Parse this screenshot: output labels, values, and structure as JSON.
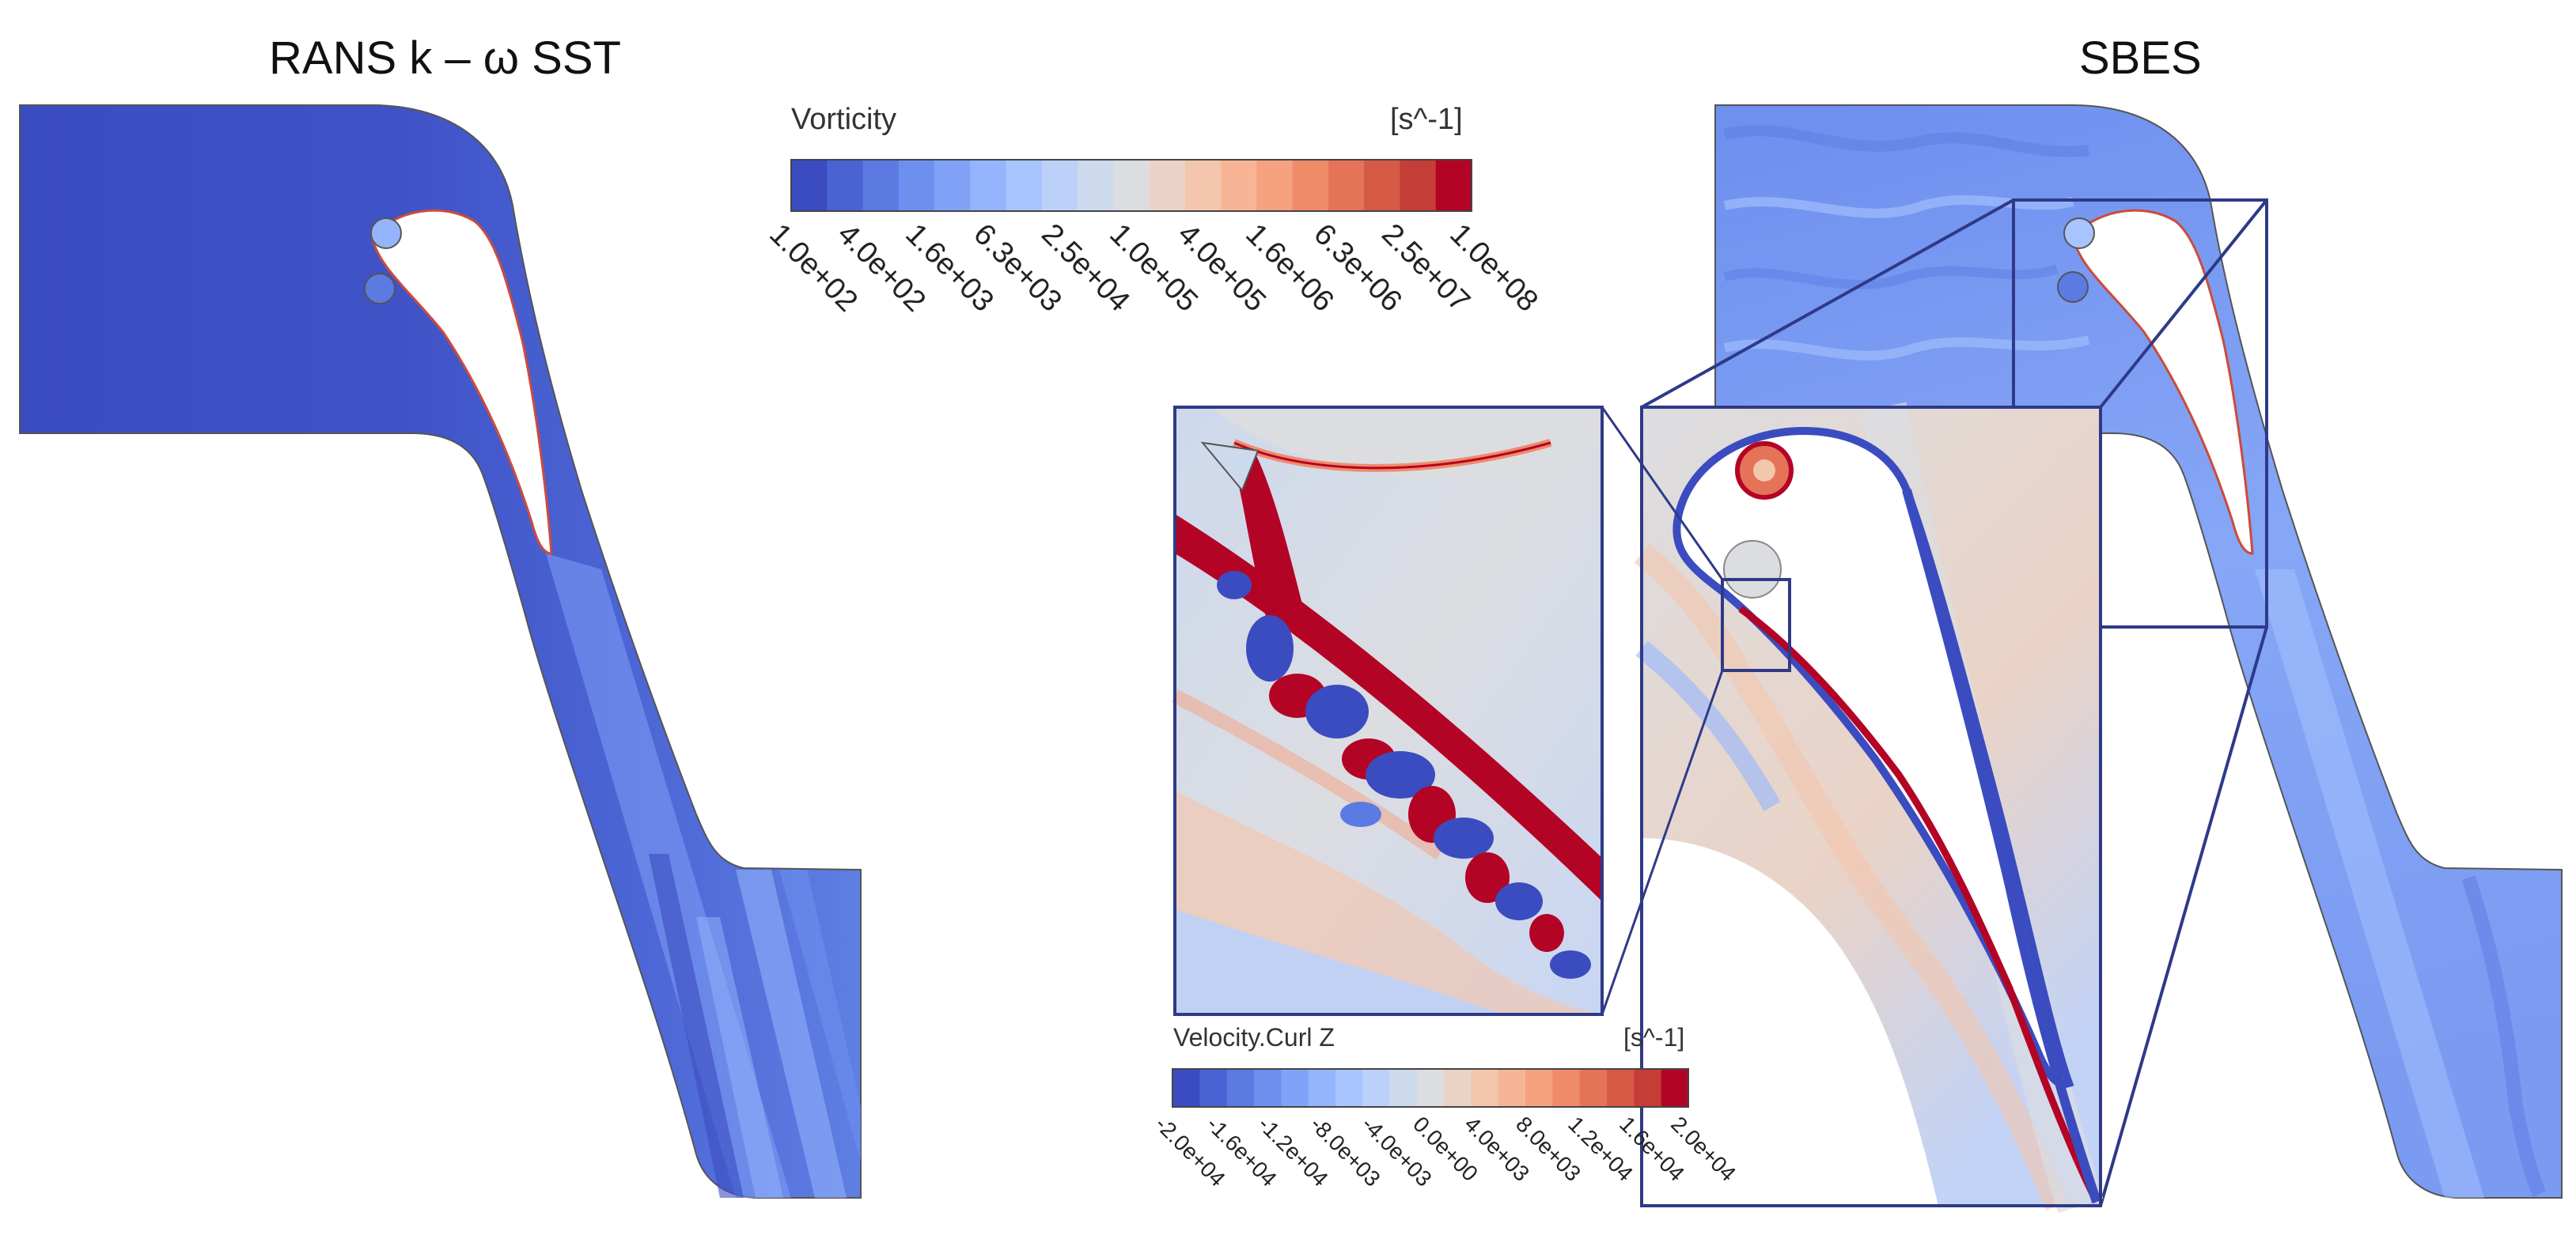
{
  "panels": {
    "left_title": "RANS k – ω SST",
    "right_title": "SBES"
  },
  "colorbar_vorticity": {
    "title": "Vorticity",
    "unit": "[s^-1]",
    "ticks": [
      "1.0e+02",
      "4.0e+02",
      "1.6e+03",
      "6.3e+03",
      "2.5e+04",
      "1.0e+05",
      "4.0e+05",
      "1.6e+06",
      "6.3e+06",
      "2.5e+07",
      "1.0e+08"
    ],
    "colors": [
      "#3b4cc0",
      "#4a63d3",
      "#5b7ae2",
      "#6d8fee",
      "#80a3f7",
      "#94b5fd",
      "#a8c4fe",
      "#bcd1f9",
      "#cdd9ed",
      "#dcdde1",
      "#ead3c6",
      "#f3c6ad",
      "#f7b595",
      "#f6a17f",
      "#f08b6a",
      "#e57357",
      "#d65a46",
      "#c43d37",
      "#b40426"
    ]
  },
  "colorbar_curl": {
    "title": "Velocity.Curl Z",
    "unit": "[s^-1]",
    "ticks": [
      "-2.0e+04",
      "-1.6e+04",
      "-1.2e+04",
      "-8.0e+03",
      "-4.0e+03",
      "0.0e+00",
      "4.0e+03",
      "8.0e+03",
      "1.2e+04",
      "1.6e+04",
      "2.0e+04"
    ],
    "colors": [
      "#3b4cc0",
      "#4a63d3",
      "#5b7ae2",
      "#6d8fee",
      "#80a3f7",
      "#94b5fd",
      "#a8c4fe",
      "#bcd1f9",
      "#cdd9ed",
      "#dcdde1",
      "#ead3c6",
      "#f3c6ad",
      "#f7b595",
      "#f6a17f",
      "#f08b6a",
      "#e57357",
      "#d65a46",
      "#c43d37",
      "#b40426"
    ]
  },
  "field_colors": {
    "deep_blue": "#3b4cc0",
    "mid_blue": "#5b7ae2",
    "light_blue": "#94b5fd",
    "pale": "#dcdde1",
    "red": "#b40426",
    "frame": "#2e3a87"
  }
}
